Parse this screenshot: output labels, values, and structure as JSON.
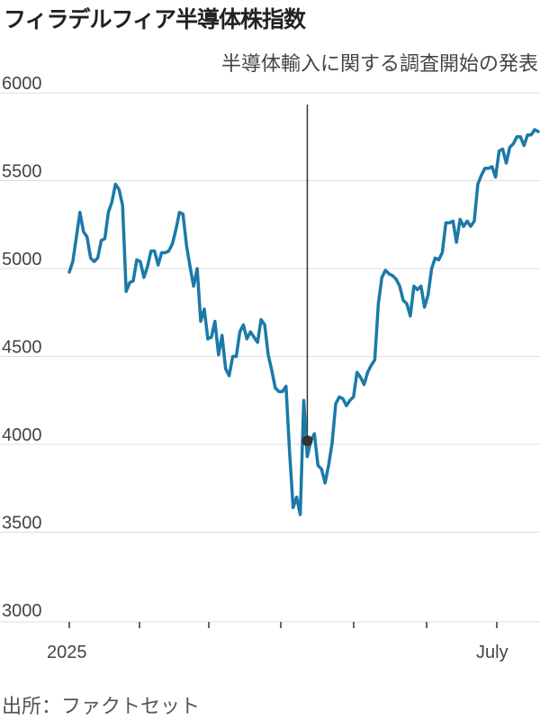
{
  "title": "フィラデルフィア半導体株指数",
  "source": "出所：ファクトセット",
  "chart_data": {
    "type": "line",
    "title": "フィラデルフィア半導体株指数",
    "xlabel": "",
    "ylabel": "",
    "ylim": [
      3000,
      6000
    ],
    "yticks": [
      3000,
      3500,
      4000,
      4500,
      5000,
      5500,
      6000
    ],
    "x_tick_labels": [
      "2025",
      "July"
    ],
    "grid": true,
    "color": "#1a7aa8",
    "annotation": {
      "text": "半導体輸入に関する調査開始の発表",
      "y": 4020
    },
    "series": [
      {
        "name": "",
        "values": [
          4980,
          5040,
          5180,
          5320,
          5210,
          5180,
          5060,
          5040,
          5060,
          5160,
          5170,
          5320,
          5380,
          5480,
          5450,
          5360,
          4870,
          4920,
          4930,
          5050,
          5040,
          4950,
          5010,
          5100,
          5100,
          5020,
          5090,
          5090,
          5100,
          5140,
          5220,
          5320,
          5310,
          5130,
          5010,
          4900,
          5000,
          4700,
          4770,
          4600,
          4610,
          4700,
          4510,
          4620,
          4430,
          4390,
          4500,
          4500,
          4640,
          4680,
          4600,
          4640,
          4610,
          4580,
          4710,
          4680,
          4510,
          4420,
          4320,
          4300,
          4300,
          4330,
          3960,
          3640,
          3700,
          3600,
          4250,
          3930,
          4020,
          4060,
          3880,
          3860,
          3780,
          3880,
          4010,
          4230,
          4270,
          4260,
          4220,
          4250,
          4270,
          4410,
          4380,
          4340,
          4410,
          4450,
          4480,
          4800,
          4950,
          4990,
          4970,
          4960,
          4940,
          4900,
          4820,
          4800,
          4730,
          4900,
          4880,
          4900,
          4780,
          4850,
          5000,
          5060,
          5050,
          5090,
          5260,
          5260,
          5270,
          5150,
          5280,
          5240,
          5270,
          5240,
          5270,
          5480,
          5530,
          5570,
          5570,
          5580,
          5520,
          5670,
          5680,
          5600,
          5690,
          5710,
          5750,
          5750,
          5700,
          5760,
          5760,
          5790,
          5780
        ]
      }
    ]
  }
}
